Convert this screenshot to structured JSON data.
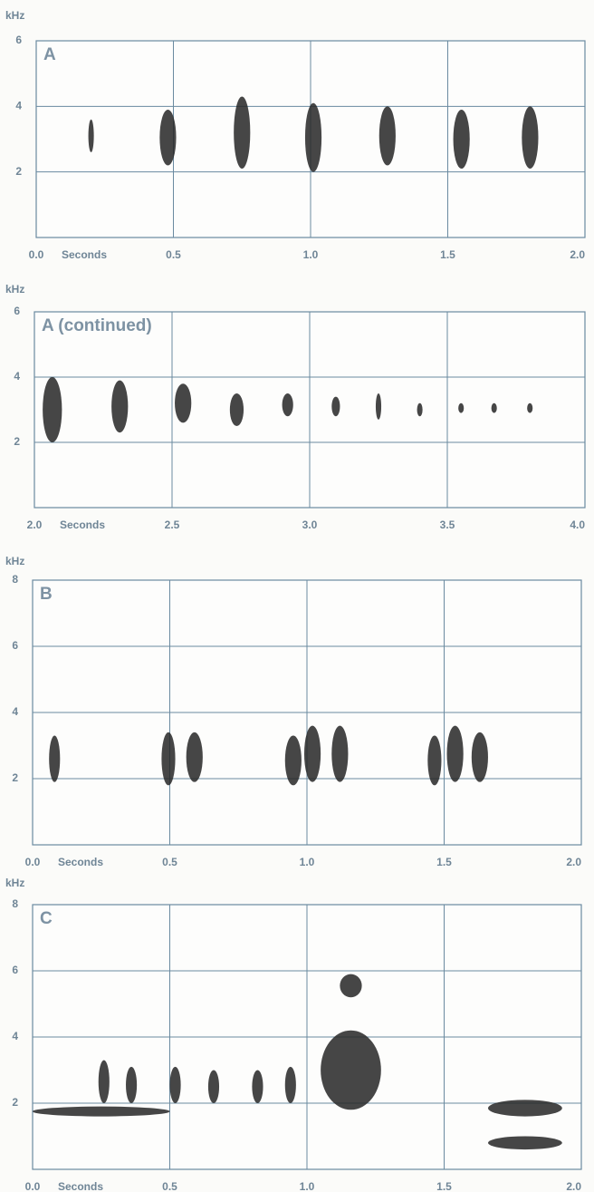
{
  "chart_data": [
    {
      "type": "spectrogram",
      "title": "A",
      "y_label": "kHz",
      "x_label": "Seconds",
      "color": "#262626",
      "xlim": [
        0,
        2
      ],
      "xticks": [
        {
          "value": 0,
          "label": "0.0"
        },
        0.5,
        {
          "value": 1,
          "label": "1.0"
        },
        1.5,
        {
          "value": 2,
          "label": "2.0"
        }
      ],
      "ylim": [
        0,
        6
      ],
      "yticks": [
        2,
        4,
        6
      ],
      "grid": true,
      "syllables": {
        "start": [
          0.19,
          0.45,
          0.72,
          0.98,
          1.25,
          1.52,
          1.77
        ],
        "end": [
          0.21,
          0.51,
          0.78,
          1.04,
          1.31,
          1.58,
          1.83
        ],
        "low": [
          2.6,
          2.2,
          2.1,
          2.0,
          2.2,
          2.1,
          2.1
        ],
        "high": [
          3.6,
          3.9,
          4.3,
          4.1,
          4.0,
          3.9,
          4.0
        ]
      }
    },
    {
      "type": "spectrogram",
      "title": "A (continued)",
      "y_label": "kHz",
      "x_label": "Seconds",
      "color": "#262626",
      "xlim": [
        2,
        4
      ],
      "xticks": [
        {
          "value": 2,
          "label": "2.0"
        },
        2.5,
        {
          "value": 3,
          "label": "3.0"
        },
        3.5,
        {
          "value": 4,
          "label": "4.0"
        }
      ],
      "ylim": [
        0,
        6
      ],
      "yticks": [
        2,
        4,
        6
      ],
      "grid": true,
      "syllables": {
        "start": [
          2.03,
          2.28,
          2.51,
          2.71,
          2.9,
          3.08,
          3.24,
          3.39,
          3.54,
          3.66,
          3.79
        ],
        "end": [
          2.1,
          2.34,
          2.57,
          2.76,
          2.94,
          3.11,
          3.26,
          3.41,
          3.56,
          3.68,
          3.81
        ],
        "low": [
          2.0,
          2.3,
          2.6,
          2.5,
          2.8,
          2.8,
          2.7,
          2.8,
          2.9,
          2.9,
          2.9
        ],
        "high": [
          4.0,
          3.9,
          3.8,
          3.5,
          3.5,
          3.4,
          3.5,
          3.2,
          3.2,
          3.2,
          3.2
        ]
      }
    },
    {
      "type": "spectrogram",
      "title": "B",
      "y_label": "kHz",
      "x_label": "Seconds",
      "color": "#262626",
      "xlim": [
        0,
        2
      ],
      "xticks": [
        {
          "value": 0,
          "label": "0.0"
        },
        0.5,
        {
          "value": 1,
          "label": "1.0"
        },
        1.5,
        {
          "value": 2,
          "label": "2.0"
        }
      ],
      "ylim": [
        0,
        8
      ],
      "yticks": [
        2,
        4,
        6,
        8
      ],
      "grid": true,
      "syllables": {
        "start": [
          0.06,
          0.47,
          0.56,
          0.92,
          0.99,
          1.09,
          1.44,
          1.51,
          1.6
        ],
        "end": [
          0.1,
          0.52,
          0.62,
          0.98,
          1.05,
          1.15,
          1.49,
          1.57,
          1.66
        ],
        "low": [
          1.9,
          1.8,
          1.9,
          1.8,
          1.9,
          1.9,
          1.8,
          1.9,
          1.9
        ],
        "high": [
          3.3,
          3.4,
          3.4,
          3.3,
          3.6,
          3.6,
          3.3,
          3.6,
          3.4
        ]
      }
    },
    {
      "type": "spectrogram",
      "title": "C",
      "y_label": "kHz",
      "x_label": "Seconds",
      "color": "#262626",
      "xlim": [
        0,
        2
      ],
      "xticks": [
        {
          "value": 0,
          "label": "0.0"
        },
        0.5,
        {
          "value": 1,
          "label": "1.0"
        },
        1.5,
        {
          "value": 2,
          "label": "2.0"
        }
      ],
      "ylim": [
        0,
        8
      ],
      "yticks": [
        2,
        4,
        6,
        8
      ],
      "grid": true,
      "syllables": {
        "start": [
          0.0,
          0.24,
          0.34,
          0.5,
          0.64,
          0.8,
          0.92,
          1.05,
          1.12,
          1.66,
          1.66
        ],
        "end": [
          0.5,
          0.28,
          0.38,
          0.54,
          0.68,
          0.84,
          0.96,
          1.27,
          1.2,
          1.93,
          1.93
        ],
        "low": [
          1.6,
          2.0,
          2.0,
          2.0,
          2.0,
          2.0,
          2.0,
          1.8,
          5.2,
          1.6,
          0.6
        ],
        "high": [
          1.9,
          3.3,
          3.1,
          3.1,
          3.0,
          3.0,
          3.1,
          4.2,
          5.9,
          2.1,
          1.0
        ]
      }
    }
  ]
}
